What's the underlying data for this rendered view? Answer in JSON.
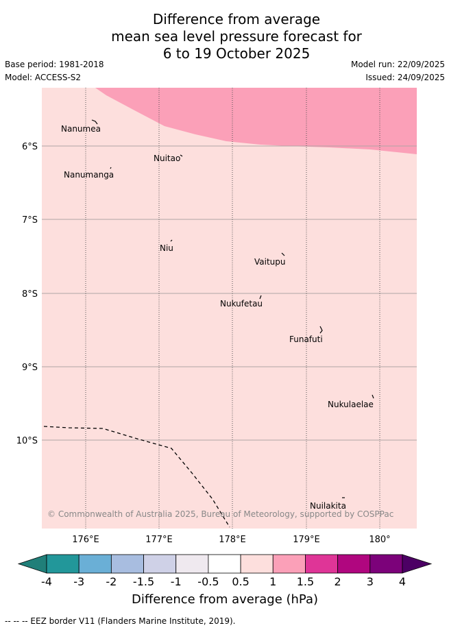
{
  "title_lines": [
    "Difference from average",
    "mean sea level pressure forecast for",
    "6 to 19 October 2025"
  ],
  "base_period": "Base period: 1981-2018",
  "model": "Model: ACCESS-S2",
  "model_run": "Model run: 22/09/2025",
  "issued": "Issued: 24/09/2025",
  "map": {
    "lat_labels": [
      "6°S",
      "7°S",
      "8°S",
      "9°S",
      "10°S"
    ],
    "lon_labels": [
      "176°E",
      "177°E",
      "178°E",
      "179°E",
      "180°"
    ],
    "islands": [
      "Nanumea",
      "Nuitao",
      "Nanumanga",
      "Niu",
      "Vaitupu",
      "Nukufetau",
      "Funafuti",
      "Nukulaelae",
      "Nuilakita"
    ],
    "copyright": "© Commonwealth of Australia 2025, Bureau of Meteorology, supported by COSPPac",
    "fill_colors": {
      "band_0_5_to_1": "#fddfdd",
      "band_1_to_1_5": "#fba0b8"
    }
  },
  "colorbar": {
    "label": "Difference from average (hPa)",
    "ticks": [
      "-4",
      "-3",
      "-2",
      "-1.5",
      "-1",
      "-0.5",
      "0.5",
      "1",
      "1.5",
      "2",
      "3",
      "4"
    ],
    "colors": [
      "#207f79",
      "#22979a",
      "#6aafd6",
      "#a8bde0",
      "#cfd1e7",
      "#efe9ef",
      "#ffffff",
      "#fddfdd",
      "#fba0b8",
      "#df3597",
      "#b0067f",
      "#7c027a",
      "#4c0064"
    ]
  },
  "footnote": "--  --  -- EEZ border V11 (Flanders Marine Institute, 2019)."
}
